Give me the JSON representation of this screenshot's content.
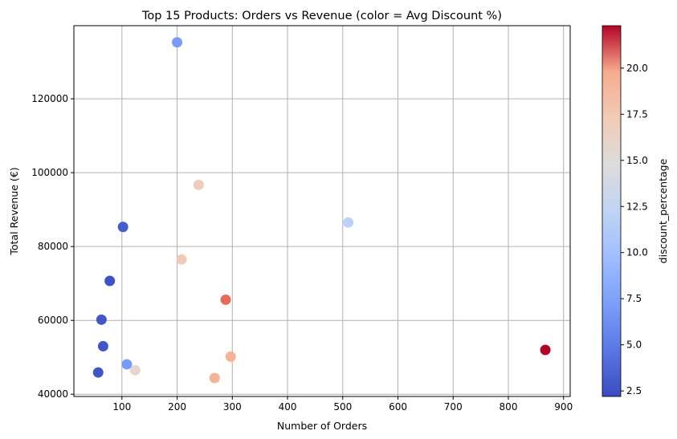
{
  "chart_data": {
    "type": "scatter",
    "title": "Top 15 Products: Orders vs Revenue (color = Avg Discount %)",
    "xlabel": "Number of Orders",
    "ylabel": "Total Revenue (€)",
    "xlim": [
      13,
      912
    ],
    "ylim": [
      39400,
      139800
    ],
    "xticks": [
      100,
      200,
      300,
      400,
      500,
      600,
      700,
      800,
      900
    ],
    "yticks": [
      40000,
      60000,
      80000,
      100000,
      120000
    ],
    "grid": true,
    "colormap": "coolwarm",
    "colorbar": {
      "label": "discount_percentage",
      "range": [
        2.2,
        22.3
      ],
      "ticks": [
        "2.5",
        "5.0",
        "7.5",
        "10.0",
        "12.5",
        "15.0",
        "17.5",
        "20.0"
      ]
    },
    "points": [
      {
        "x": 200,
        "y": 135300,
        "discount": 6.0
      },
      {
        "x": 239,
        "y": 96700,
        "discount": 14.0
      },
      {
        "x": 510,
        "y": 86500,
        "discount": 10.0
      },
      {
        "x": 102,
        "y": 85300,
        "discount": 3.0
      },
      {
        "x": 208,
        "y": 76500,
        "discount": 14.3
      },
      {
        "x": 78,
        "y": 70700,
        "discount": 2.5
      },
      {
        "x": 288,
        "y": 65600,
        "discount": 19.2
      },
      {
        "x": 63,
        "y": 60200,
        "discount": 2.7
      },
      {
        "x": 66,
        "y": 53000,
        "discount": 2.6
      },
      {
        "x": 867,
        "y": 52000,
        "discount": 22.3
      },
      {
        "x": 297,
        "y": 50200,
        "discount": 15.8
      },
      {
        "x": 109,
        "y": 48100,
        "discount": 6.0
      },
      {
        "x": 124,
        "y": 46500,
        "discount": 13.0
      },
      {
        "x": 57,
        "y": 45900,
        "discount": 2.6
      },
      {
        "x": 268,
        "y": 44400,
        "discount": 15.8
      }
    ]
  }
}
